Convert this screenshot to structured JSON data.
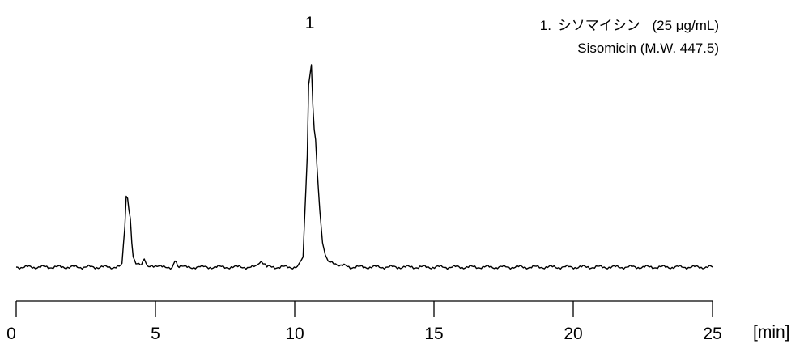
{
  "chart_data": {
    "type": "line",
    "title": "",
    "xlabel": "",
    "ylabel": "",
    "x_unit_label": "[min]",
    "xlim": [
      0,
      25
    ],
    "x_ticks": [
      0,
      5,
      10,
      15,
      20,
      25
    ],
    "x_tick_labels": [
      "0",
      "5",
      "10",
      "15",
      "20",
      "25"
    ],
    "y_axis_visible": false,
    "grid": false,
    "series": [
      {
        "x": [
          0,
          3.7,
          3.8,
          3.9,
          3.95,
          4.0,
          4.05,
          4.1,
          4.15,
          4.2,
          4.3,
          4.4,
          4.5,
          4.6,
          4.7,
          4.8,
          5.0,
          5.6,
          5.7,
          5.8,
          5.9,
          6.2,
          8.6,
          8.8,
          9.0,
          10.1,
          10.3,
          10.45,
          10.5,
          10.55,
          10.6,
          10.65,
          10.7,
          10.75,
          10.8,
          10.9,
          11.0,
          11.1,
          11.2,
          11.4,
          11.6,
          12.0,
          25
        ],
        "y": [
          0,
          0,
          0.02,
          0.2,
          0.35,
          0.34,
          0.28,
          0.24,
          0.12,
          0.05,
          0.02,
          0.01,
          0.02,
          0.04,
          0.01,
          0.0,
          0.0,
          0.0,
          0.03,
          0.01,
          0.0,
          0.0,
          0.0,
          0.02,
          0.0,
          0.0,
          0.05,
          0.55,
          0.9,
          0.95,
          1.0,
          0.8,
          0.68,
          0.63,
          0.5,
          0.28,
          0.12,
          0.06,
          0.03,
          0.02,
          0.01,
          0.0,
          0.0
        ]
      }
    ],
    "peaks": [
      {
        "label": "1",
        "x": 10.6
      }
    ],
    "legend": {
      "line1_prefix": "1.",
      "line1_name": "シソマイシン",
      "line1_conc": "(25 μg/mL)",
      "line2": "Sisomicin (M.W. 447.5)"
    },
    "colors": {
      "trace": "#000000",
      "axis": "#000000"
    }
  }
}
